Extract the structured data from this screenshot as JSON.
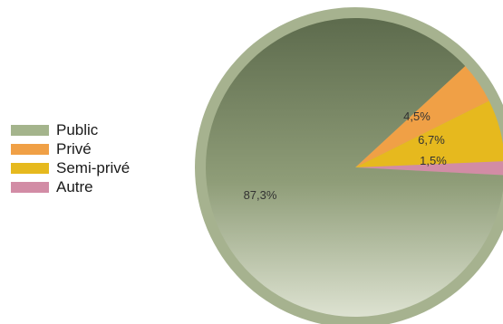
{
  "chart_data": {
    "type": "pie",
    "slices": [
      {
        "name": "Public",
        "value": 87.3,
        "label": "87,3%",
        "color": "#a4b48c"
      },
      {
        "name": "Privé",
        "value": 4.5,
        "label": "4,5%",
        "color": "#f0a046"
      },
      {
        "name": "Semi-privé",
        "value": 6.7,
        "label": "6,7%",
        "color": "#e6b91e"
      },
      {
        "name": "Autre",
        "value": 1.5,
        "label": "1,5%",
        "color": "#d28ca5"
      }
    ],
    "legend_position": "left"
  }
}
